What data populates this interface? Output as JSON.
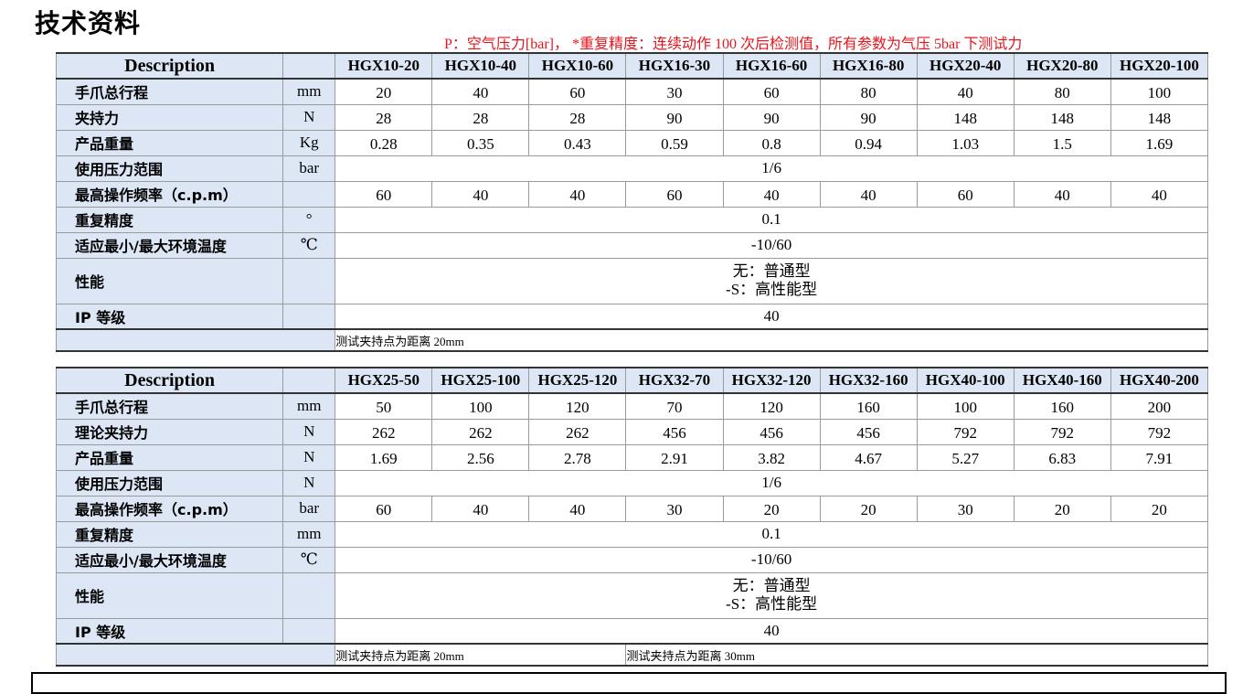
{
  "title": "技术资料",
  "note": "P：空气压力[bar]，  *重复精度：连续动作 100 次后检测值，所有参数为气压 5bar 下测试力",
  "table1": {
    "header": {
      "description": "Description",
      "models": [
        "HGX10-20",
        "HGX10-40",
        "HGX10-60",
        "HGX16-30",
        "HGX16-60",
        "HGX16-80",
        "HGX20-40",
        "HGX20-80",
        "HGX20-100"
      ]
    },
    "rows": [
      {
        "label": "手爪总行程",
        "unit": "mm",
        "values": [
          "20",
          "40",
          "60",
          "30",
          "60",
          "80",
          "40",
          "80",
          "100"
        ]
      },
      {
        "label": "夹持力",
        "unit": "N",
        "values": [
          "28",
          "28",
          "28",
          "90",
          "90",
          "90",
          "148",
          "148",
          "148"
        ]
      },
      {
        "label": "产品重量",
        "unit": "Kg",
        "values": [
          "0.28",
          "0.35",
          "0.43",
          "0.59",
          "0.8",
          "0.94",
          "1.03",
          "1.5",
          "1.69"
        ]
      },
      {
        "label": "使用压力范围",
        "unit": "bar",
        "span": "1/6"
      },
      {
        "label": "最高操作频率（c.p.m）",
        "unit": "",
        "values": [
          "60",
          "40",
          "40",
          "60",
          "40",
          "40",
          "60",
          "40",
          "40"
        ]
      },
      {
        "label": "重复精度",
        "unit": "°",
        "span": "0.1"
      },
      {
        "label": "适应最小/最大环境温度",
        "unit": "℃",
        "span": "-10/60"
      },
      {
        "label": "性能",
        "unit": "",
        "span_lines": [
          "无：普通型",
          "-S：高性能型"
        ]
      },
      {
        "label": "IP 等级",
        "unit": "",
        "span": "40"
      }
    ],
    "footnotes": [
      "测试夹持点为距离 20mm"
    ]
  },
  "table2": {
    "header": {
      "description": "Description",
      "models": [
        "HGX25-50",
        "HGX25-100",
        "HGX25-120",
        "HGX32-70",
        "HGX32-120",
        "HGX32-160",
        "HGX40-100",
        "HGX40-160",
        "HGX40-200"
      ]
    },
    "rows": [
      {
        "label": "手爪总行程",
        "unit": "mm",
        "values": [
          "50",
          "100",
          "120",
          "70",
          "120",
          "160",
          "100",
          "160",
          "200"
        ]
      },
      {
        "label": "理论夹持力",
        "unit": "N",
        "values": [
          "262",
          "262",
          "262",
          "456",
          "456",
          "456",
          "792",
          "792",
          "792"
        ]
      },
      {
        "label": "产品重量",
        "unit": "N",
        "values": [
          "1.69",
          "2.56",
          "2.78",
          "2.91",
          "3.82",
          "4.67",
          "5.27",
          "6.83",
          "7.91"
        ]
      },
      {
        "label": "使用压力范围",
        "unit": "N",
        "span": "1/6"
      },
      {
        "label": "最高操作频率（c.p.m）",
        "unit": "bar",
        "values": [
          "60",
          "40",
          "40",
          "30",
          "20",
          "20",
          "30",
          "20",
          "20"
        ]
      },
      {
        "label": "重复精度",
        "unit": "mm",
        "span": "0.1"
      },
      {
        "label": "适应最小/最大环境温度",
        "unit": "℃",
        "span": "-10/60"
      },
      {
        "label": "性能",
        "unit": "",
        "span_lines": [
          "无：普通型",
          "-S：高性能型"
        ]
      },
      {
        "label": "IP 等级",
        "unit": "",
        "span": "40"
      }
    ],
    "footnotes": [
      "测试夹持点为距离 20mm",
      "测试夹持点为距离 30mm"
    ]
  }
}
